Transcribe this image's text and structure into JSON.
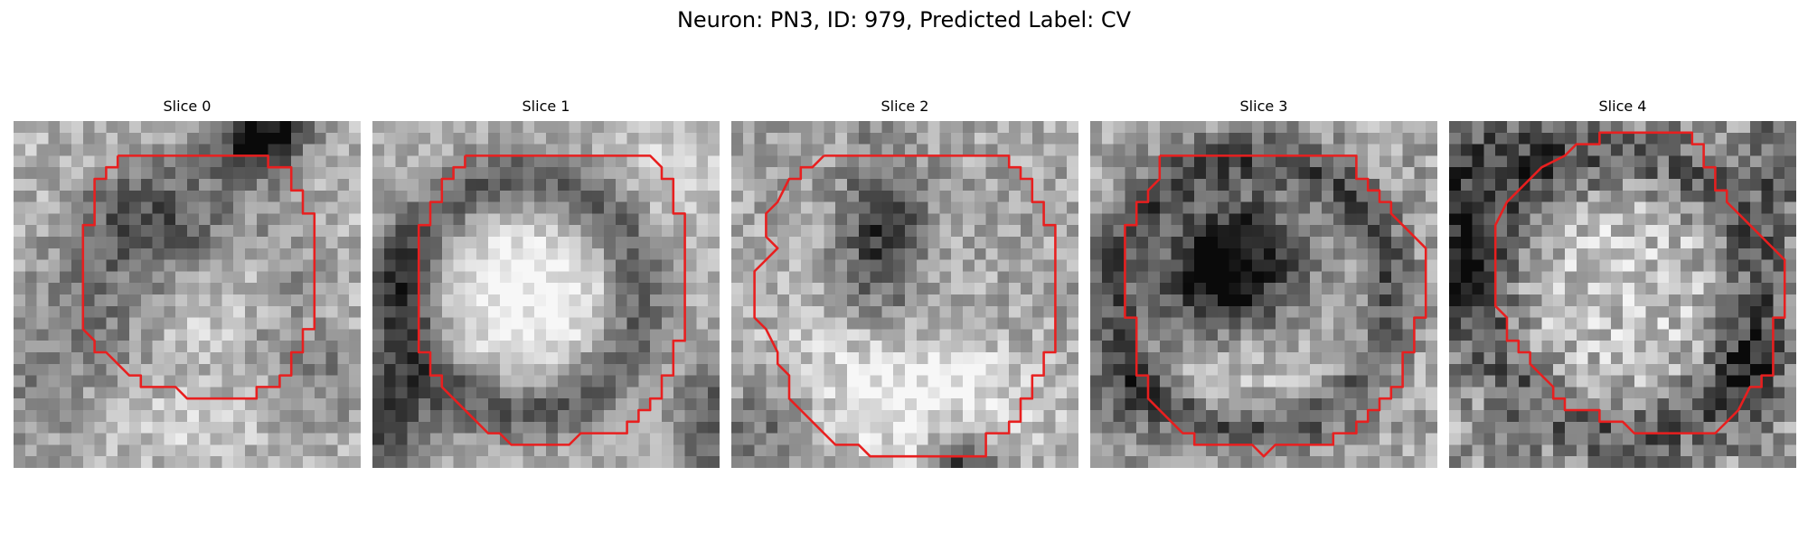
{
  "figure": {
    "title": "Neuron: PN3, ID: 979, Predicted Label: CV"
  },
  "panels": [
    {
      "title": "Slice 0"
    },
    {
      "title": "Slice 1"
    },
    {
      "title": "Slice 2"
    },
    {
      "title": "Slice 3"
    },
    {
      "title": "Slice 4"
    }
  ],
  "colors": {
    "contour": "#e81f1f",
    "background": "#ffffff"
  }
}
